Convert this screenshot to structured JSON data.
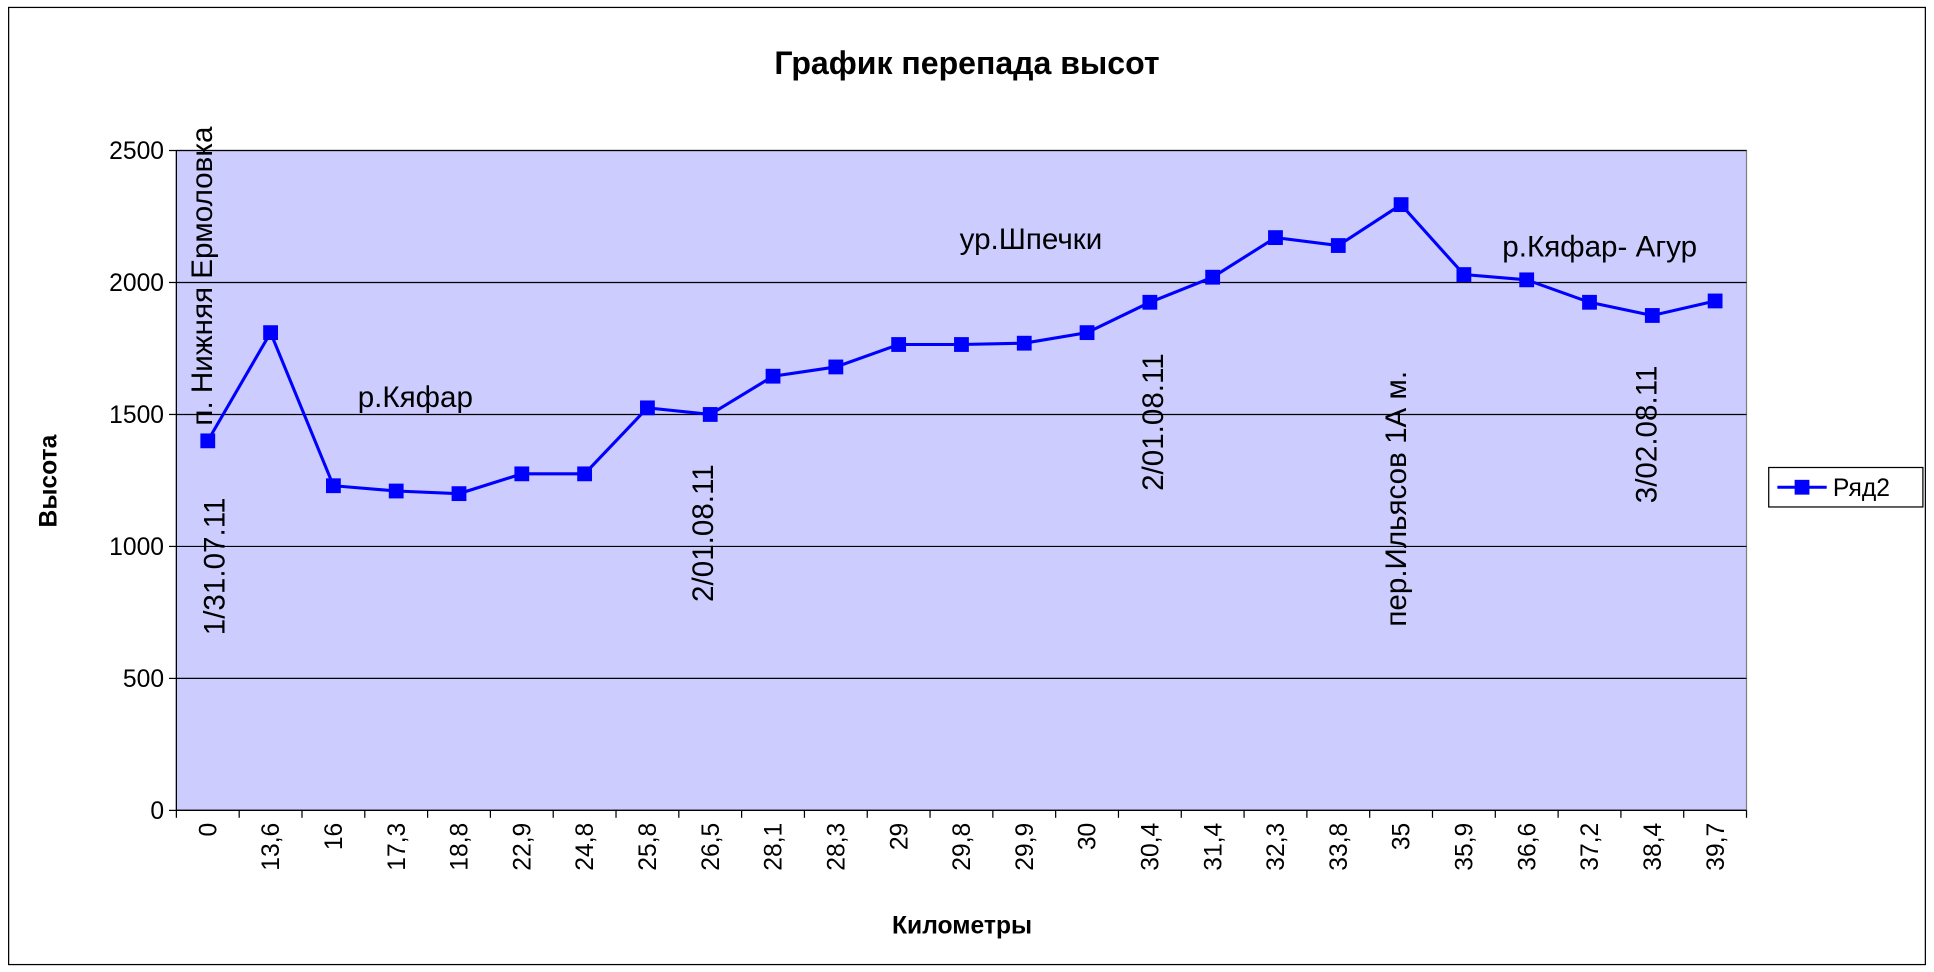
{
  "chart_data": {
    "type": "line",
    "title": "График перепада высот",
    "x_label": "Километры",
    "y_label": "Высота",
    "categories": [
      "0",
      "13,6",
      "16",
      "17,3",
      "18,8",
      "22,9",
      "24,8",
      "25,8",
      "26,5",
      "28,1",
      "28,3",
      "29",
      "29,8",
      "29,9",
      "30",
      "30,4",
      "31,4",
      "32,3",
      "33,8",
      "35",
      "35,9",
      "36,6",
      "37,2",
      "38,4",
      "39,7"
    ],
    "series": [
      {
        "name": "Ряд2",
        "color": "#0000ff",
        "values": [
          1400,
          1810,
          1230,
          1210,
          1200,
          1275,
          1275,
          1525,
          1500,
          1645,
          1680,
          1765,
          1765,
          1770,
          1810,
          1925,
          2020,
          2170,
          2140,
          2295,
          2030,
          2010,
          1925,
          1875,
          1930
        ]
      }
    ],
    "ylim": [
      0,
      2500
    ],
    "yticks": [
      0,
      500,
      1000,
      1500,
      2000,
      2500
    ],
    "grid": true,
    "legend": "right",
    "plot_background": "#ccccff",
    "annotations": [
      "п. Нижняя Ермоловка",
      "1/31.07.11",
      "р.Кяфар",
      "2/01.08.11",
      "ур.Шпечки",
      "2/01.08.11",
      "пер.Ильясов 1А м.",
      "р.Кяфар- Агур",
      "3/02.08.11"
    ]
  }
}
